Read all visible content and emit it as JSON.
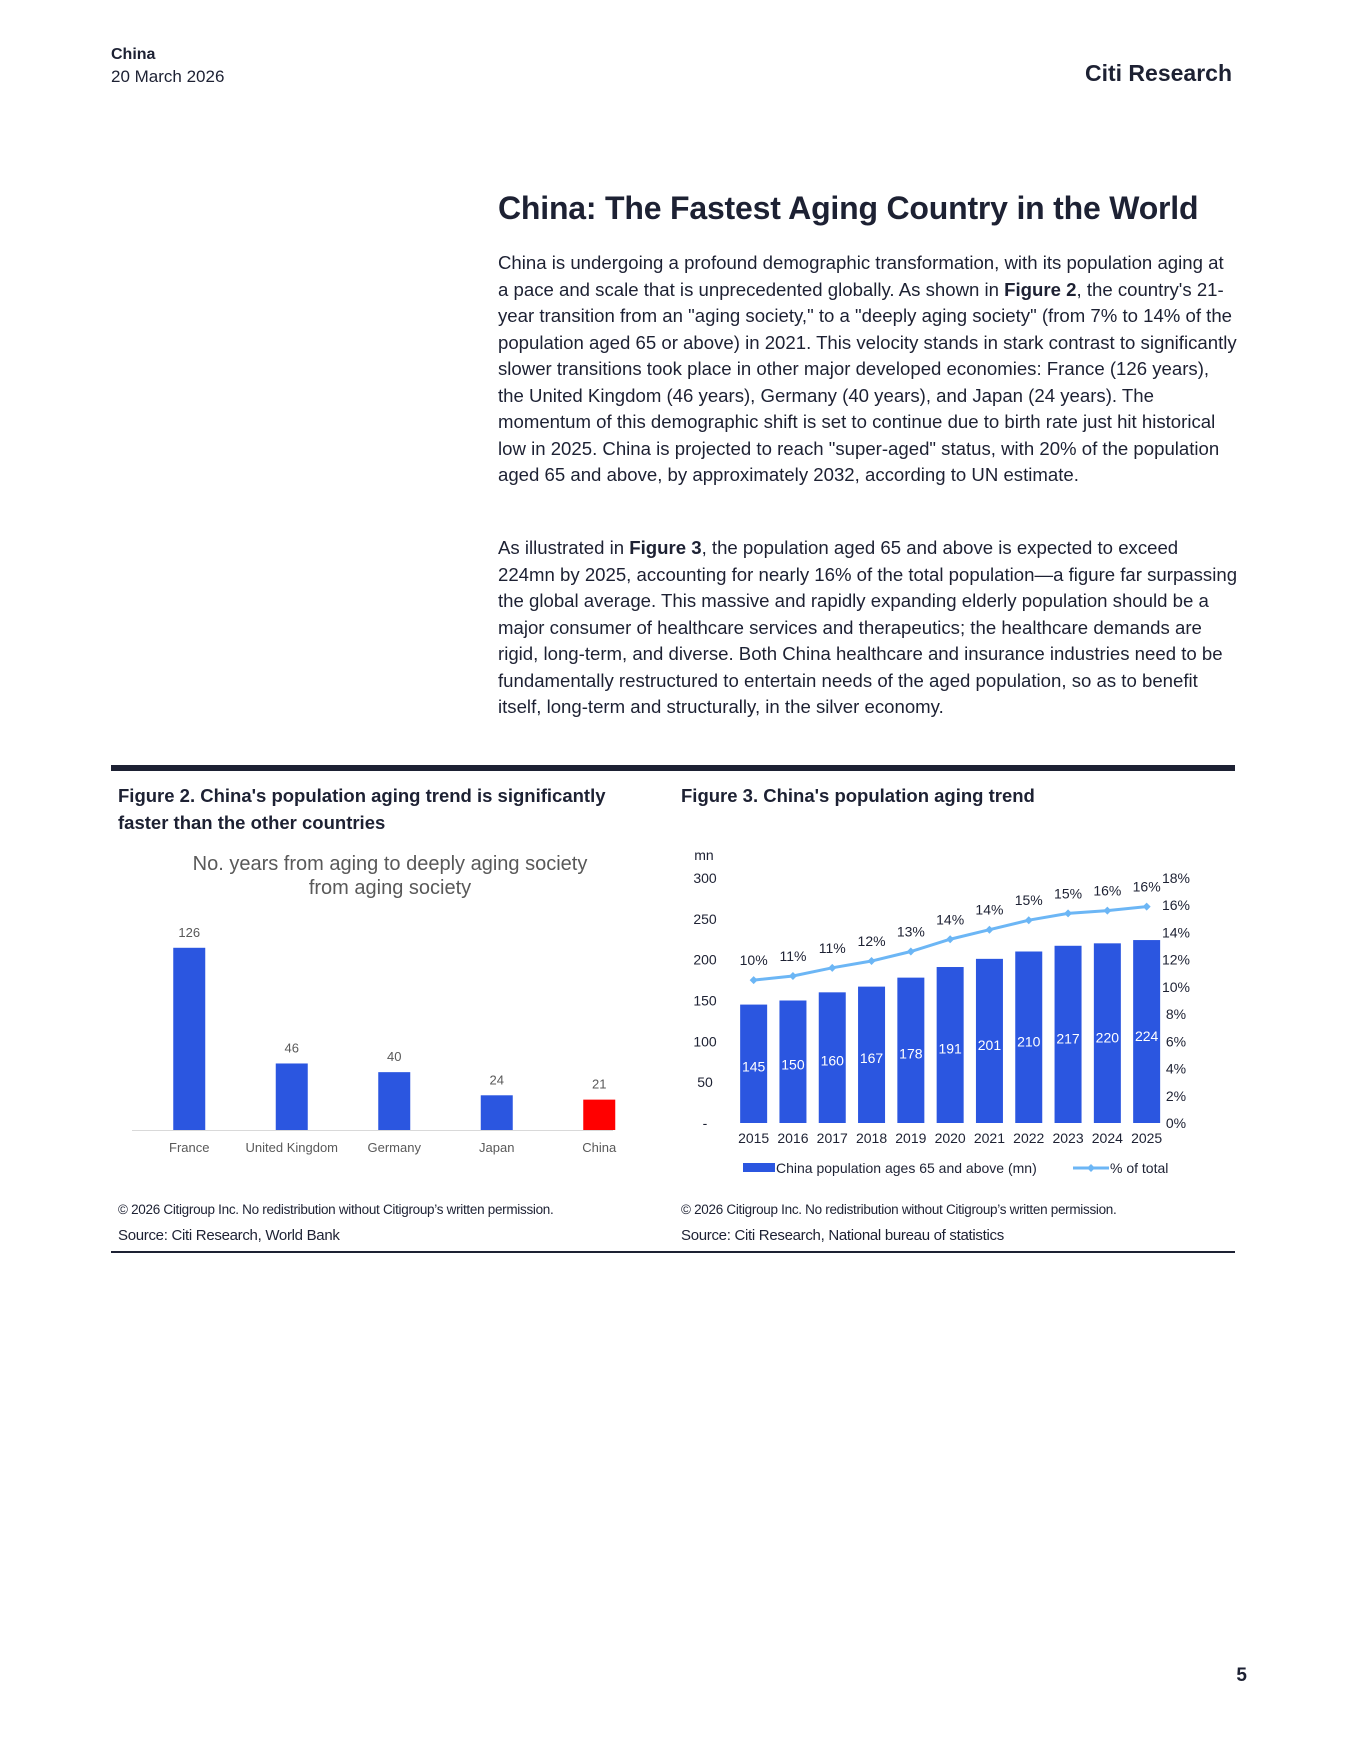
{
  "header": {
    "region": "China",
    "date": "20 March 2026",
    "brand": "Citi Research"
  },
  "article": {
    "title": "China: The Fastest Aging Country in the World",
    "para1": [
      {
        "t": "China is undergoing a profound demographic transformation, with its population aging at a pace and scale that is unprecedented globally. As shown in "
      },
      {
        "t": "Figure 2",
        "b": true
      },
      {
        "t": ", the country's 21-year transition from an \"aging society,\" to a \"deeply aging society\" (from 7% to 14% of the population aged 65 or above) in 2021. This velocity stands in stark contrast to significantly slower transitions took place in other major developed economies: France (126 years), the United Kingdom (46 years), Germany (40 years), and Japan (24 years). The momentum of this demographic shift is set to continue due to birth rate just hit historical low in 2025. China is projected to reach \"super-aged\" status, with 20% of the population aged 65 and above, by approximately 2032, according to UN estimate."
      }
    ],
    "para2": [
      {
        "t": "As illustrated in "
      },
      {
        "t": "Figure 3",
        "b": true
      },
      {
        "t": ", the population aged 65 and above is expected to exceed 224mn by 2025, accounting for nearly 16% of the total population—a figure far surpassing the global average. This massive and rapidly expanding elderly population should be a major consumer of healthcare services and therapeutics; the healthcare demands are rigid, long-term, and diverse. Both China healthcare and insurance industries need to be fundamentally restructured to entertain needs of the aged population, so as to benefit itself, long-term and structurally, in the silver economy."
      }
    ]
  },
  "figure2": {
    "title": "Figure 2. China's population aging trend is significantly faster than the other countries",
    "copyright": "© 2026 Citigroup Inc. No redistribution without Citigroup’s written permission.",
    "source": "Source: Citi Research, World Bank"
  },
  "figure3": {
    "title": "Figure 3. China's population aging trend",
    "copyright": "© 2026 Citigroup Inc. No redistribution without Citigroup’s written permission.",
    "source": "Source: Citi Research, National bureau of statistics"
  },
  "chart_data": [
    {
      "type": "bar",
      "title": "No. years from aging to deeply aging society from aging society",
      "title_lines": [
        "No. years from aging to deeply aging society",
        "from aging society"
      ],
      "categories": [
        "France",
        "United Kingdom",
        "Germany",
        "Japan",
        "China"
      ],
      "values": [
        126,
        46,
        40,
        24,
        21
      ],
      "data_labels": [
        "126",
        "46",
        "40",
        "24",
        "21"
      ],
      "colors": [
        "#2b56e0",
        "#2b56e0",
        "#2b56e0",
        "#2b56e0",
        "#ff0000"
      ],
      "ylim": [
        0,
        130
      ],
      "xlabel": "",
      "ylabel": "",
      "grid": false
    },
    {
      "type": "bar",
      "categories": [
        "2015",
        "2016",
        "2017",
        "2018",
        "2019",
        "2020",
        "2021",
        "2022",
        "2023",
        "2024",
        "2025"
      ],
      "series": [
        {
          "name": "China population ages 65 and above (mn)",
          "type": "bar",
          "axis": "left",
          "color": "#2b56e0",
          "values": [
            145,
            150,
            160,
            167,
            178,
            191,
            201,
            210,
            217,
            220,
            224
          ],
          "labels": [
            "145",
            "150",
            "160",
            "167",
            "178",
            "191",
            "201",
            "210",
            "217",
            "220",
            "224"
          ]
        },
        {
          "name": "% of total",
          "type": "line",
          "axis": "right",
          "color": "#6cb6f5",
          "values": [
            10.5,
            10.8,
            11.4,
            11.9,
            12.6,
            13.5,
            14.2,
            14.9,
            15.4,
            15.6,
            15.9
          ],
          "labels": [
            "10%",
            "11%",
            "11%",
            "12%",
            "13%",
            "14%",
            "14%",
            "15%",
            "15%",
            "16%",
            "16%"
          ]
        }
      ],
      "left_axis": {
        "unit": "mn",
        "range": [
          0,
          300
        ],
        "ticks": [
          0,
          50,
          100,
          150,
          200,
          250,
          300
        ],
        "tick_labels": [
          "-",
          "50",
          "100",
          "150",
          "200",
          "250",
          "300"
        ]
      },
      "right_axis": {
        "range": [
          0,
          18
        ],
        "ticks": [
          0,
          2,
          4,
          6,
          8,
          10,
          12,
          14,
          16,
          18
        ],
        "tick_labels": [
          "0%",
          "2%",
          "4%",
          "6%",
          "8%",
          "10%",
          "12%",
          "14%",
          "16%",
          "18%"
        ]
      },
      "legend": "bottom",
      "grid": false
    }
  ],
  "page_number": "5"
}
